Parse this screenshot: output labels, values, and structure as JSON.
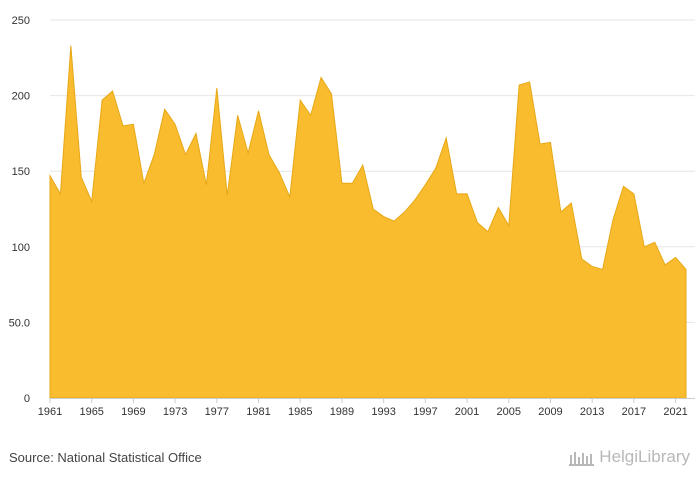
{
  "footer": {
    "source": "Source: National Statistical Office",
    "brand": "HelgiLibrary"
  },
  "colors": {
    "fill": "#f9bc2e",
    "stroke": "#e6a817",
    "grid": "#e6e6e6",
    "axis": "#cccccc"
  },
  "chart_data": {
    "type": "area",
    "x": [
      1961,
      1962,
      1963,
      1964,
      1965,
      1966,
      1967,
      1968,
      1969,
      1970,
      1971,
      1972,
      1973,
      1974,
      1975,
      1976,
      1977,
      1978,
      1979,
      1980,
      1981,
      1982,
      1983,
      1984,
      1985,
      1986,
      1987,
      1988,
      1989,
      1990,
      1991,
      1992,
      1993,
      1994,
      1995,
      1996,
      1997,
      1998,
      1999,
      2000,
      2001,
      2002,
      2003,
      2004,
      2005,
      2006,
      2007,
      2008,
      2009,
      2010,
      2011,
      2012,
      2013,
      2014,
      2015,
      2016,
      2017,
      2018,
      2019,
      2020,
      2021,
      2022
    ],
    "series": [
      {
        "values": [
          147,
          135,
          233,
          146,
          130,
          197,
          203,
          180,
          181,
          142,
          161,
          191,
          181,
          161,
          175,
          141,
          205,
          134,
          187,
          162,
          190,
          161,
          149,
          133,
          197,
          187,
          212,
          201,
          142,
          142,
          154,
          125,
          120,
          117,
          123,
          131,
          141,
          152,
          172,
          135,
          135,
          116,
          110,
          126,
          114,
          207,
          209,
          168,
          169,
          123,
          129,
          92,
          87,
          85,
          118,
          140,
          135,
          100,
          103,
          88,
          93,
          85
        ]
      }
    ],
    "title": "",
    "xlabel": "",
    "ylabel": "",
    "xlim": [
      1961,
      2022
    ],
    "ylim": [
      0,
      250
    ],
    "x_ticks": [
      "1961",
      "1965",
      "1969",
      "1973",
      "1977",
      "1981",
      "1985",
      "1989",
      "1993",
      "1997",
      "2001",
      "2005",
      "2009",
      "2013",
      "2017",
      "2021"
    ],
    "y_ticks": [
      "0",
      "50.0",
      "100",
      "150",
      "200",
      "250"
    ],
    "grid": true,
    "legend": "none"
  }
}
